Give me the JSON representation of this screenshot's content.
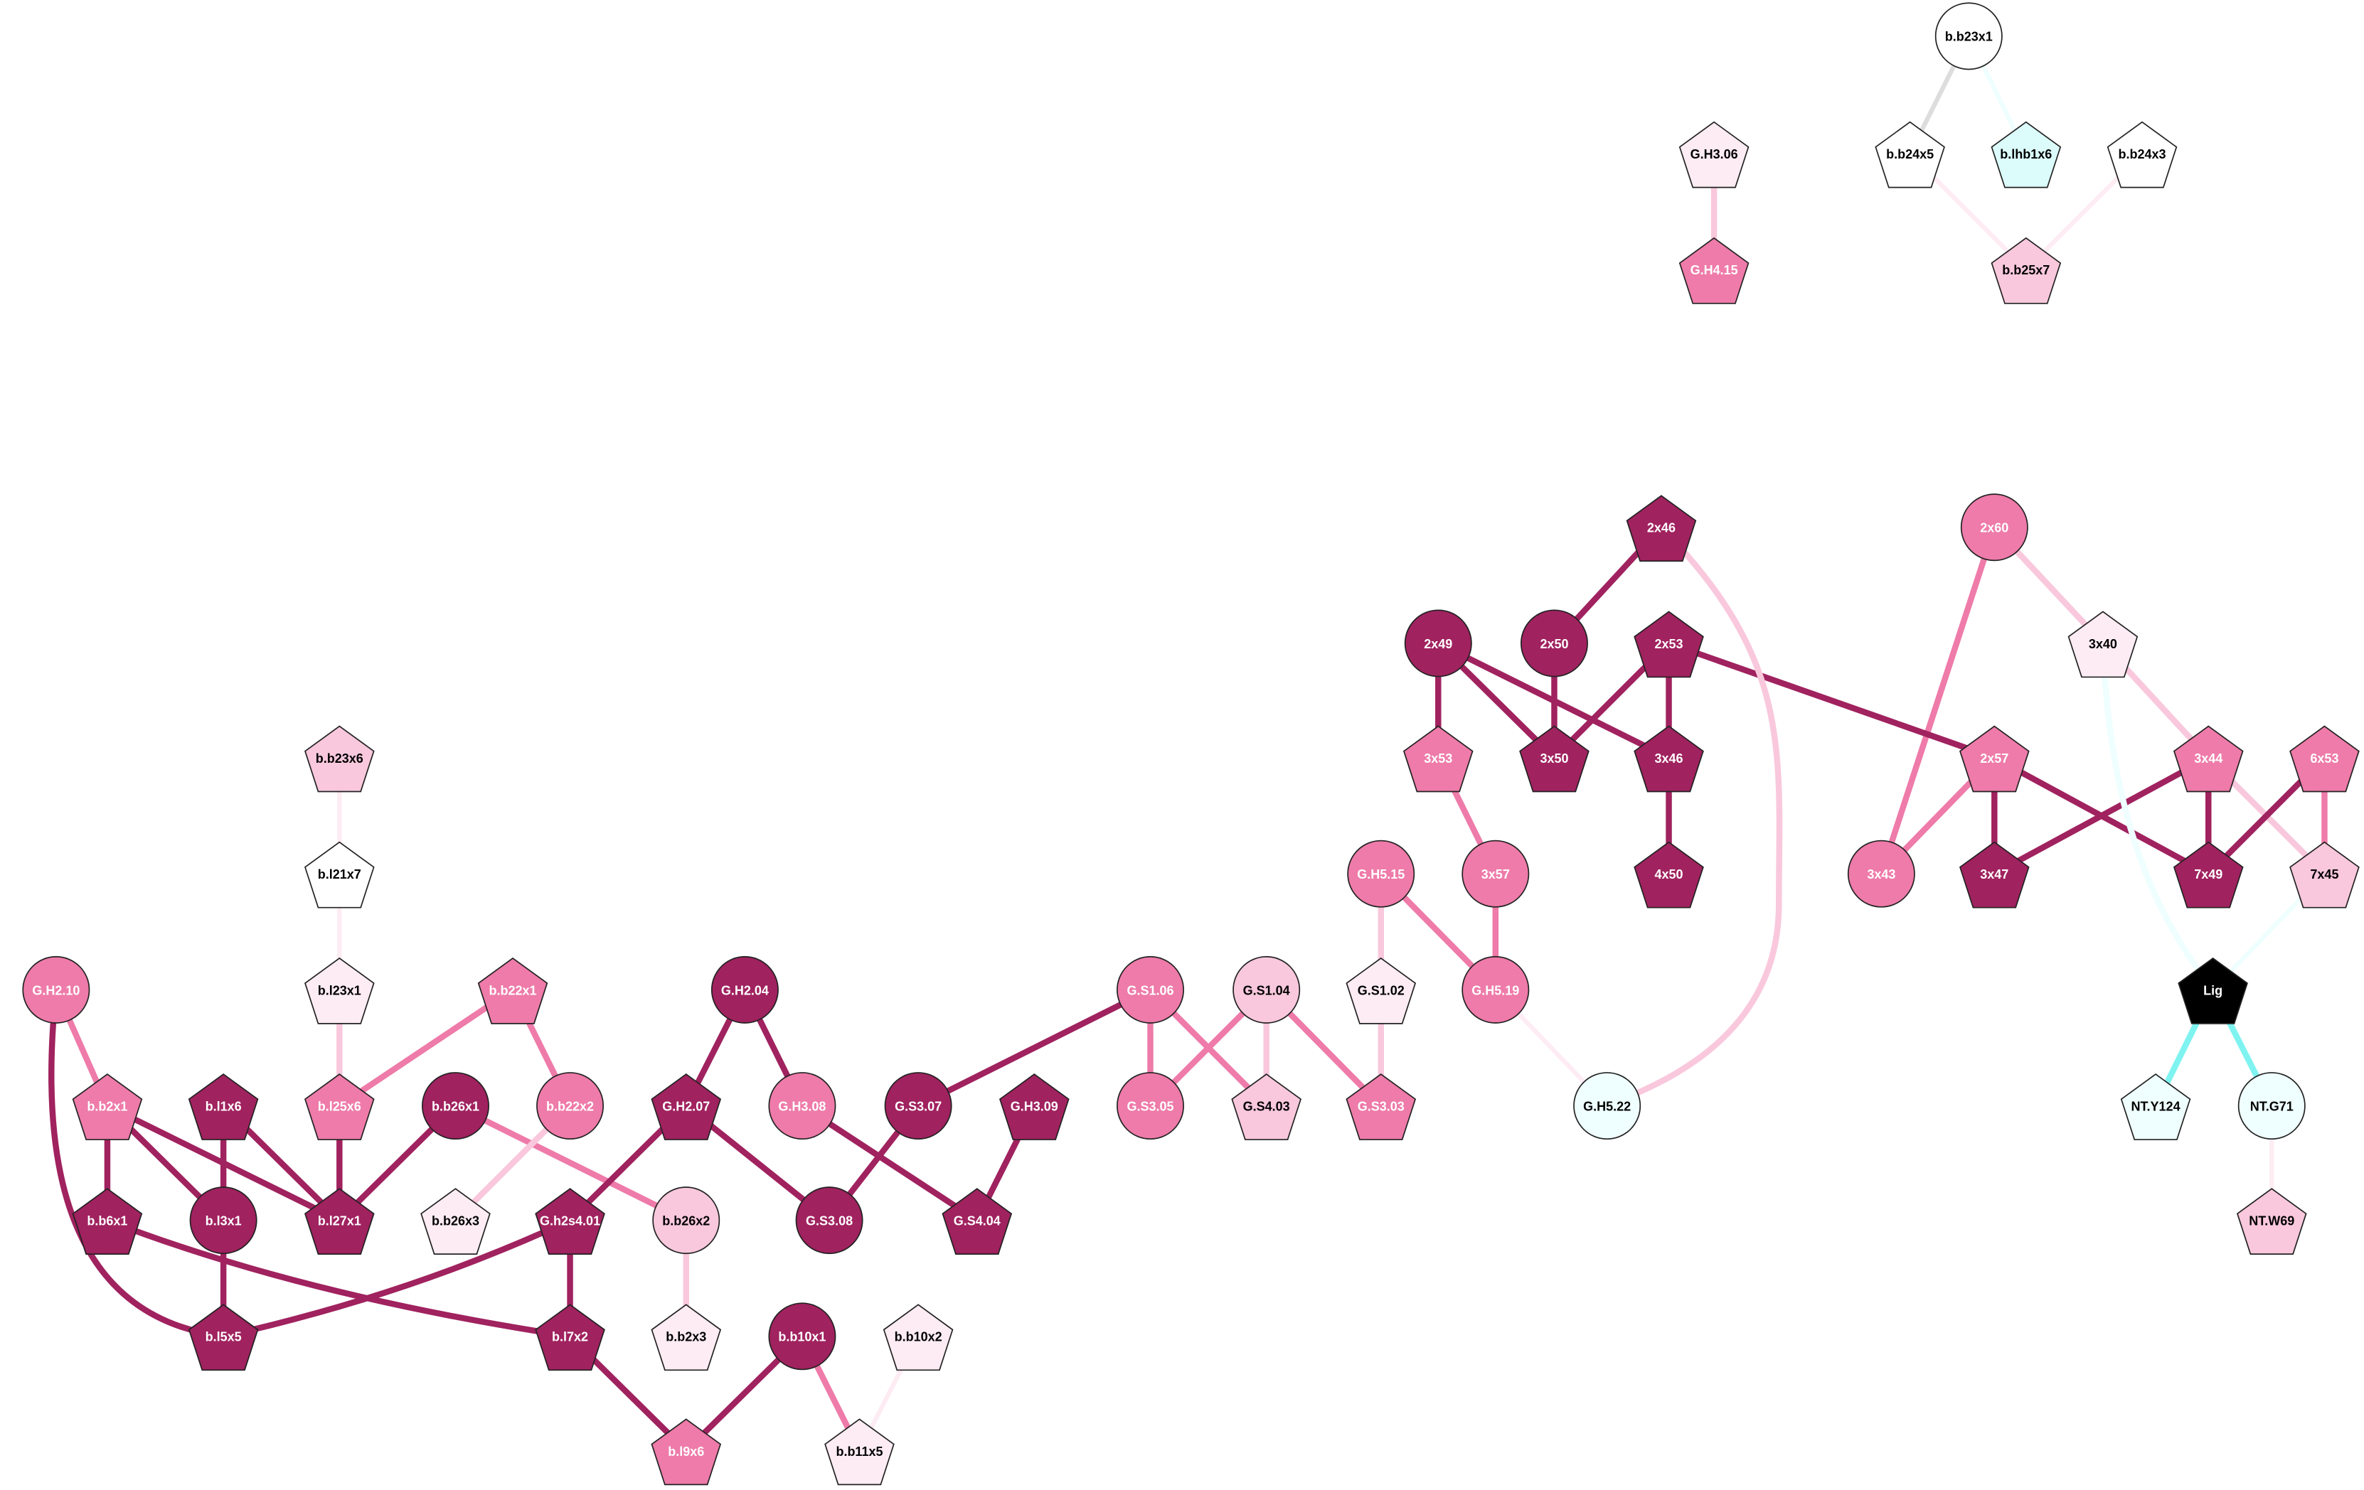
{
  "nodes": [
    {
      "label": "b.b23x1"
    },
    {
      "label": "G.H3.06"
    },
    {
      "label": "b.b24x5"
    },
    {
      "label": "b.lhb1x6"
    },
    {
      "label": "b.b24x3"
    },
    {
      "label": "G.H4.15"
    },
    {
      "label": "b.b25x7"
    },
    {
      "label": "2x46"
    },
    {
      "label": "2x60"
    },
    {
      "label": "2x49"
    },
    {
      "label": "2x50"
    },
    {
      "label": "2x53"
    },
    {
      "label": "3x40"
    },
    {
      "label": "3x53"
    },
    {
      "label": "3x50"
    },
    {
      "label": "3x46"
    },
    {
      "label": "2x57"
    },
    {
      "label": "3x44"
    },
    {
      "label": "6x53"
    },
    {
      "label": "b.b23x6"
    },
    {
      "label": "3x57"
    },
    {
      "label": "4x50"
    },
    {
      "label": "3x43"
    },
    {
      "label": "3x47"
    },
    {
      "label": "7x49"
    },
    {
      "label": "7x45"
    },
    {
      "label": "G.H5.15"
    },
    {
      "label": "b.l21x7"
    },
    {
      "label": "G.H2.10"
    },
    {
      "label": "b.l23x1"
    },
    {
      "label": "b.b22x1"
    },
    {
      "label": "G.H2.04"
    },
    {
      "label": "G.S1.06"
    },
    {
      "label": "G.S1.04"
    },
    {
      "label": "G.S1.02"
    },
    {
      "label": "G.H5.19"
    },
    {
      "label": "Lig"
    },
    {
      "label": "b.b2x1"
    },
    {
      "label": "b.l1x6"
    },
    {
      "label": "b.l25x6"
    },
    {
      "label": "b.b26x1"
    },
    {
      "label": "b.b22x2"
    },
    {
      "label": "G.H2.07"
    },
    {
      "label": "G.H3.08"
    },
    {
      "label": "G.S3.07"
    },
    {
      "label": "G.H3.09"
    },
    {
      "label": "G.S3.05"
    },
    {
      "label": "G.S4.03"
    },
    {
      "label": "G.S3.03"
    },
    {
      "label": "G.H5.22"
    },
    {
      "label": "NT.Y124"
    },
    {
      "label": "NT.G71"
    },
    {
      "label": "b.b6x1"
    },
    {
      "label": "b.l3x1"
    },
    {
      "label": "b.l27x1"
    },
    {
      "label": "b.b26x3"
    },
    {
      "label": "G.h2s4.01"
    },
    {
      "label": "b.b26x2"
    },
    {
      "label": "G.S3.08"
    },
    {
      "label": "G.S4.04"
    },
    {
      "label": "NT.W69"
    },
    {
      "label": "b.l5x5"
    },
    {
      "label": "b.l7x2"
    },
    {
      "label": "b.b2x3"
    },
    {
      "label": "b.b10x1"
    },
    {
      "label": "b.b10x2"
    },
    {
      "label": "b.l9x6"
    },
    {
      "label": "b.b11x5"
    }
  ]
}
